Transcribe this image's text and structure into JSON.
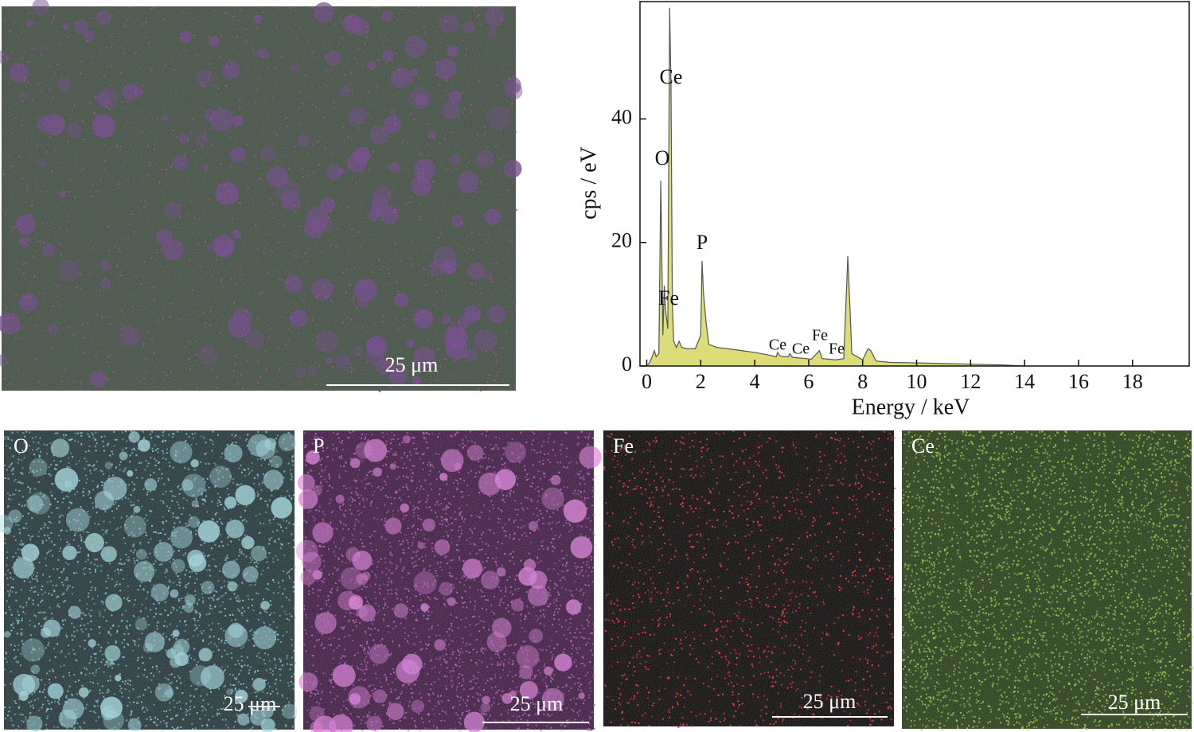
{
  "chart_data": {
    "type": "area",
    "xlabel": "Energy / keV",
    "ylabel": "cps / eV",
    "x": [
      0.0,
      0.1,
      0.2,
      0.28,
      0.35,
      0.45,
      0.52,
      0.6,
      0.65,
      0.7,
      0.78,
      0.85,
      0.9,
      0.95,
      1.0,
      1.1,
      1.2,
      1.3,
      1.5,
      1.8,
      2.0,
      2.05,
      2.1,
      2.2,
      2.3,
      2.6,
      3.0,
      3.5,
      4.0,
      4.5,
      4.8,
      4.85,
      4.95,
      5.25,
      5.3,
      5.4,
      5.9,
      6.1,
      6.4,
      6.5,
      7.0,
      7.3,
      7.45,
      7.6,
      8.0,
      8.2,
      8.3,
      8.5,
      9.0,
      10.0,
      11.0,
      12.0,
      13.0,
      14.0
    ],
    "values": [
      0,
      0.5,
      1.5,
      2.5,
      1.5,
      2,
      30,
      5,
      13,
      9,
      6,
      58,
      45,
      10,
      4,
      3,
      4,
      3,
      2.8,
      2.8,
      5,
      17,
      12,
      7,
      3.5,
      3.0,
      2.8,
      2.5,
      2.2,
      1.8,
      1.5,
      2.2,
      1.6,
      1.5,
      2,
      1.4,
      1.2,
      1.1,
      2.5,
      1.2,
      1.0,
      1.2,
      17.8,
      2,
      1.0,
      2.8,
      2.5,
      0.8,
      0.6,
      0.5,
      0.4,
      0.3,
      0.2,
      0
    ],
    "color": "#dcdc78",
    "xlim": [
      -0.25,
      20.1
    ],
    "ylim": [
      0,
      59
    ],
    "xticks": [
      0,
      2,
      4,
      6,
      8,
      10,
      12,
      14,
      16,
      18
    ],
    "yticks": [
      0,
      20,
      40
    ],
    "annotations": [
      "Ce",
      "O",
      "P",
      "Fe",
      "Ce",
      "Ce",
      "Fe",
      "Fe"
    ]
  },
  "sem_image": {
    "scale_bar": "25 μm"
  },
  "maps": [
    {
      "element": "O",
      "scale_bar": "25 μm"
    },
    {
      "element": "P",
      "scale_bar": "25 μm"
    },
    {
      "element": "Fe",
      "scale_bar": "25 μm"
    },
    {
      "element": "Ce",
      "scale_bar": "25 μm"
    }
  ]
}
